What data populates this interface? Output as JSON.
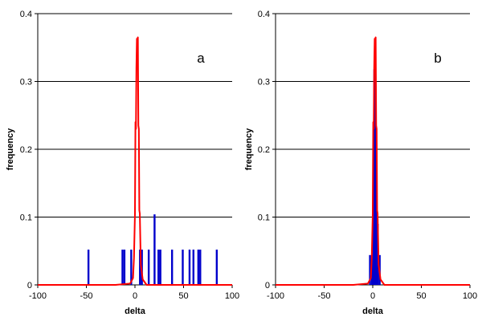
{
  "chart_data": [
    {
      "type": "bar",
      "panel_label": "a",
      "xlabel": "delta",
      "ylabel": "frequency",
      "xlim": [
        -100,
        100
      ],
      "ylim": [
        0,
        0.4
      ],
      "xticks": [
        "-100",
        "-50",
        "0",
        "50",
        "100"
      ],
      "yticks": [
        "0",
        "0.1",
        "0.2",
        "0.3",
        "0.4"
      ],
      "grid": "horizontal",
      "colors": {
        "curve": "#ff0000",
        "bars": "#0000cc",
        "grid": "#000000"
      },
      "curve": {
        "x": [
          -100,
          -20,
          -5,
          -2,
          -1,
          0,
          0.5,
          1,
          1.5,
          2,
          2.5,
          3,
          3.5,
          4,
          4.5,
          5,
          6,
          8,
          12,
          30,
          100
        ],
        "y": [
          0,
          0,
          0.002,
          0.01,
          0.04,
          0.105,
          0.24,
          0.23,
          0.32,
          0.363,
          0.36,
          0.365,
          0.235,
          0.23,
          0.11,
          0.105,
          0.03,
          0.008,
          0,
          0,
          0
        ]
      },
      "bars": [
        {
          "x": -48,
          "y": 0.052
        },
        {
          "x": -13,
          "y": 0.052
        },
        {
          "x": -11,
          "y": 0.052
        },
        {
          "x": -4,
          "y": 0.052
        },
        {
          "x": 5,
          "y": 0.052
        },
        {
          "x": 7,
          "y": 0.052
        },
        {
          "x": 14,
          "y": 0.052
        },
        {
          "x": 20,
          "y": 0.104
        },
        {
          "x": 24,
          "y": 0.052
        },
        {
          "x": 26,
          "y": 0.052
        },
        {
          "x": 38,
          "y": 0.052
        },
        {
          "x": 49,
          "y": 0.052
        },
        {
          "x": 56,
          "y": 0.052
        },
        {
          "x": 60,
          "y": 0.052
        },
        {
          "x": 65,
          "y": 0.052
        },
        {
          "x": 67,
          "y": 0.052
        },
        {
          "x": 84,
          "y": 0.052
        }
      ]
    },
    {
      "type": "bar",
      "panel_label": "b",
      "xlabel": "delta",
      "ylabel": "frequency",
      "xlim": [
        -100,
        100
      ],
      "ylim": [
        0,
        0.4
      ],
      "xticks": [
        "-100",
        "-50",
        "0",
        "50",
        "100"
      ],
      "yticks": [
        "0",
        "0.1",
        "0.2",
        "0.3",
        "0.4"
      ],
      "grid": "horizontal",
      "colors": {
        "curve": "#ff0000",
        "bars": "#0000cc",
        "grid": "#000000"
      },
      "curve": {
        "x": [
          -100,
          -20,
          -5,
          -2,
          -1,
          0,
          0.5,
          1,
          1.5,
          2,
          2.5,
          3,
          3.5,
          4,
          4.5,
          5,
          6,
          8,
          12,
          30,
          100
        ],
        "y": [
          0,
          0,
          0.002,
          0.01,
          0.04,
          0.105,
          0.24,
          0.23,
          0.32,
          0.363,
          0.36,
          0.365,
          0.235,
          0.23,
          0.11,
          0.105,
          0.03,
          0.008,
          0,
          0,
          0
        ]
      },
      "bars": [
        {
          "x": -3,
          "y": 0.044
        },
        {
          "x": -1,
          "y": 0.044
        },
        {
          "x": 0.5,
          "y": 0.128
        },
        {
          "x": 1.5,
          "y": 0.318
        },
        {
          "x": 2.5,
          "y": 0.318
        },
        {
          "x": 3.5,
          "y": 0.172
        },
        {
          "x": 5,
          "y": 0.09
        },
        {
          "x": 7,
          "y": 0.044
        }
      ]
    }
  ]
}
